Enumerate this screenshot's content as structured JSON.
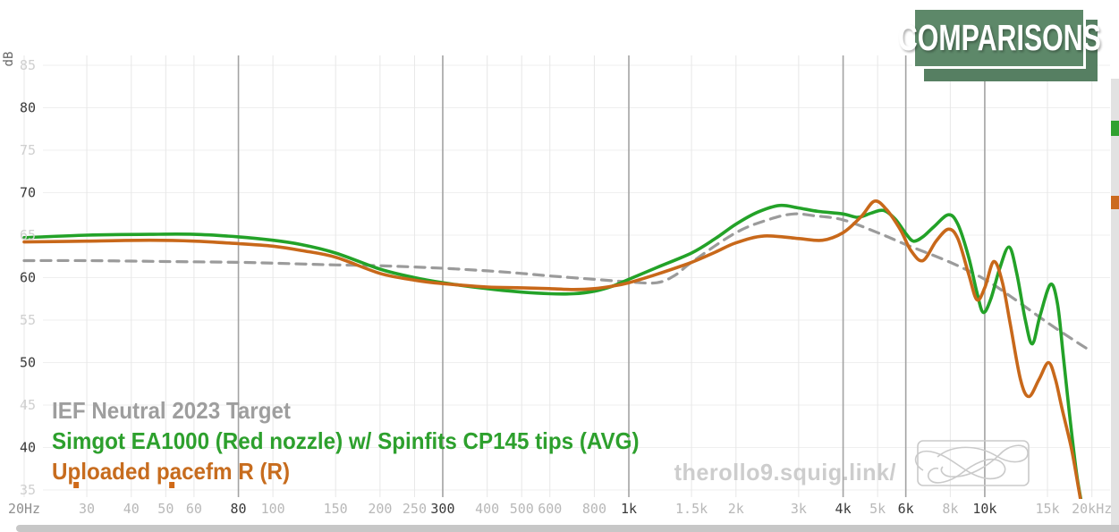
{
  "header": {
    "comparisons_button": "COMPARISONS",
    "button_color": "#5d8869",
    "button_shadow_color": "#567f62"
  },
  "watermark": "therollo9.squig.link/",
  "axis": {
    "y_title": "dB",
    "y_ticks": [
      {
        "label": "85",
        "value": 85,
        "emphasis": false
      },
      {
        "label": "80",
        "value": 80,
        "emphasis": true
      },
      {
        "label": "75",
        "value": 75,
        "emphasis": false
      },
      {
        "label": "70",
        "value": 70,
        "emphasis": true
      },
      {
        "label": "65",
        "value": 65,
        "emphasis": false
      },
      {
        "label": "60",
        "value": 60,
        "emphasis": true
      },
      {
        "label": "55",
        "value": 55,
        "emphasis": false
      },
      {
        "label": "50",
        "value": 50,
        "emphasis": true
      },
      {
        "label": "45",
        "value": 45,
        "emphasis": false
      },
      {
        "label": "40",
        "value": 40,
        "emphasis": true
      },
      {
        "label": "35",
        "value": 35,
        "emphasis": false
      }
    ],
    "x_ticks": [
      {
        "label": "20Hz",
        "freq": 20,
        "shade": "mid"
      },
      {
        "label": "30",
        "freq": 30,
        "shade": "light"
      },
      {
        "label": "40",
        "freq": 40,
        "shade": "light"
      },
      {
        "label": "50",
        "freq": 50,
        "shade": "light"
      },
      {
        "label": "60",
        "freq": 60,
        "shade": "light"
      },
      {
        "label": "80",
        "freq": 80,
        "shade": "dark"
      },
      {
        "label": "100",
        "freq": 100,
        "shade": "light"
      },
      {
        "label": "150",
        "freq": 150,
        "shade": "light"
      },
      {
        "label": "200",
        "freq": 200,
        "shade": "light"
      },
      {
        "label": "250",
        "freq": 250,
        "shade": "light"
      },
      {
        "label": "300",
        "freq": 300,
        "shade": "dark"
      },
      {
        "label": "400",
        "freq": 400,
        "shade": "light"
      },
      {
        "label": "500",
        "freq": 500,
        "shade": "light"
      },
      {
        "label": "600",
        "freq": 600,
        "shade": "light"
      },
      {
        "label": "800",
        "freq": 800,
        "shade": "light"
      },
      {
        "label": "1k",
        "freq": 1000,
        "shade": "dark"
      },
      {
        "label": "1.5k",
        "freq": 1500,
        "shade": "light"
      },
      {
        "label": "2k",
        "freq": 2000,
        "shade": "light"
      },
      {
        "label": "3k",
        "freq": 3000,
        "shade": "light"
      },
      {
        "label": "4k",
        "freq": 4000,
        "shade": "dark"
      },
      {
        "label": "5k",
        "freq": 5000,
        "shade": "light"
      },
      {
        "label": "6k",
        "freq": 6000,
        "shade": "dark"
      },
      {
        "label": "8k",
        "freq": 8000,
        "shade": "light"
      },
      {
        "label": "10k",
        "freq": 10000,
        "shade": "dark"
      },
      {
        "label": "15k",
        "freq": 15000,
        "shade": "light"
      },
      {
        "label": "20kHz",
        "freq": 20000,
        "shade": "light"
      }
    ]
  },
  "legend": [
    {
      "label": "IEF Neutral 2023 Target",
      "color": "#9e9e9e"
    },
    {
      "label": "Simgot EA1000 (Red nozzle) w/ Spinfits CP145 tips (AVG)",
      "color": "#2da02d"
    },
    {
      "label": "Uploaded pacefm R (R)",
      "color": "#c76c1e"
    }
  ],
  "chart_data": {
    "type": "line",
    "title": "",
    "ylabel": "dB",
    "x_scale": "log",
    "x_range": [
      20,
      20000
    ],
    "y_range": [
      35,
      85
    ],
    "y_tick_step": 5,
    "grid": true,
    "legend_position": "bottom-left",
    "series": [
      {
        "name": "IEF Neutral 2023 Target",
        "slug": "target-curve",
        "color": "#9b9b9b",
        "style": "dashed",
        "points": [
          [
            20,
            62
          ],
          [
            30,
            62
          ],
          [
            50,
            61.9
          ],
          [
            80,
            61.8
          ],
          [
            100,
            61.7
          ],
          [
            150,
            61.5
          ],
          [
            200,
            61.4
          ],
          [
            300,
            61.1
          ],
          [
            400,
            60.8
          ],
          [
            500,
            60.5
          ],
          [
            600,
            60.2
          ],
          [
            800,
            59.8
          ],
          [
            1000,
            59.5
          ],
          [
            1200,
            59.4
          ],
          [
            1350,
            60.3
          ],
          [
            1500,
            61.8
          ],
          [
            2000,
            65.3
          ],
          [
            2500,
            66.9
          ],
          [
            2900,
            67.5
          ],
          [
            3300,
            67.3
          ],
          [
            4000,
            66.8
          ],
          [
            5000,
            65.3
          ],
          [
            6000,
            63.9
          ],
          [
            8000,
            61.8
          ],
          [
            10000,
            59.8
          ],
          [
            12000,
            57.6
          ],
          [
            15000,
            54.7
          ],
          [
            18000,
            52.5
          ],
          [
            19800,
            51.4
          ]
        ]
      },
      {
        "name": "Simgot EA1000 (Red nozzle) w/ Spinfits CP145 tips (AVG)",
        "slug": "ea1000-curve",
        "color": "#23a228",
        "style": "solid",
        "points": [
          [
            20,
            64.7
          ],
          [
            30,
            65
          ],
          [
            45,
            65.1
          ],
          [
            60,
            65.1
          ],
          [
            80,
            64.8
          ],
          [
            100,
            64.4
          ],
          [
            120,
            63.9
          ],
          [
            150,
            62.9
          ],
          [
            200,
            61
          ],
          [
            250,
            60
          ],
          [
            300,
            59.4
          ],
          [
            400,
            58.7
          ],
          [
            500,
            58.3
          ],
          [
            600,
            58.1
          ],
          [
            700,
            58.1
          ],
          [
            800,
            58.4
          ],
          [
            900,
            59
          ],
          [
            1000,
            59.8
          ],
          [
            1200,
            61.2
          ],
          [
            1500,
            62.9
          ],
          [
            1750,
            64.6
          ],
          [
            2000,
            66.3
          ],
          [
            2300,
            67.7
          ],
          [
            2650,
            68.5
          ],
          [
            3000,
            68.2
          ],
          [
            3400,
            67.8
          ],
          [
            4000,
            67.5
          ],
          [
            4400,
            67.1
          ],
          [
            4800,
            67.6
          ],
          [
            5200,
            67.9
          ],
          [
            5600,
            66.9
          ],
          [
            6000,
            65.2
          ],
          [
            6300,
            64.3
          ],
          [
            6700,
            64.8
          ],
          [
            7200,
            66
          ],
          [
            7900,
            67.4
          ],
          [
            8400,
            66.3
          ],
          [
            9000,
            62.5
          ],
          [
            9500,
            58.3
          ],
          [
            9900,
            55.9
          ],
          [
            10400,
            57.5
          ],
          [
            11000,
            61
          ],
          [
            11700,
            63.6
          ],
          [
            12300,
            60.5
          ],
          [
            13000,
            55
          ],
          [
            13600,
            52.2
          ],
          [
            14300,
            55.5
          ],
          [
            15300,
            59.2
          ],
          [
            16000,
            57
          ],
          [
            16600,
            51
          ],
          [
            17300,
            44
          ],
          [
            18100,
            37
          ],
          [
            18800,
            33
          ]
        ]
      },
      {
        "name": "Uploaded pacefm R (R)",
        "slug": "pacefm-curve",
        "color": "#c8681a",
        "style": "solid",
        "points": [
          [
            20,
            64.2
          ],
          [
            30,
            64.3
          ],
          [
            45,
            64.4
          ],
          [
            60,
            64.3
          ],
          [
            80,
            64
          ],
          [
            100,
            63.7
          ],
          [
            120,
            63.2
          ],
          [
            150,
            62.4
          ],
          [
            200,
            60.5
          ],
          [
            250,
            59.7
          ],
          [
            300,
            59.3
          ],
          [
            400,
            58.9
          ],
          [
            500,
            58.8
          ],
          [
            600,
            58.7
          ],
          [
            700,
            58.6
          ],
          [
            800,
            58.7
          ],
          [
            900,
            59
          ],
          [
            1000,
            59.4
          ],
          [
            1200,
            60.4
          ],
          [
            1500,
            61.8
          ],
          [
            1750,
            63
          ],
          [
            2000,
            64.1
          ],
          [
            2400,
            64.9
          ],
          [
            3000,
            64.6
          ],
          [
            3500,
            64.4
          ],
          [
            4000,
            65.3
          ],
          [
            4500,
            67.2
          ],
          [
            4900,
            69
          ],
          [
            5300,
            68
          ],
          [
            5800,
            65.6
          ],
          [
            6200,
            63.2
          ],
          [
            6700,
            62
          ],
          [
            7300,
            64.3
          ],
          [
            7900,
            65.7
          ],
          [
            8400,
            64.6
          ],
          [
            9000,
            60.5
          ],
          [
            9500,
            57.4
          ],
          [
            10000,
            58.8
          ],
          [
            10600,
            61.9
          ],
          [
            11200,
            59.5
          ],
          [
            11800,
            54.5
          ],
          [
            12600,
            48
          ],
          [
            13300,
            46
          ],
          [
            14200,
            48
          ],
          [
            15100,
            50
          ],
          [
            15800,
            48
          ],
          [
            16500,
            44.5
          ],
          [
            17500,
            40
          ],
          [
            18300,
            35.5
          ],
          [
            18900,
            32
          ]
        ]
      }
    ]
  },
  "decor": {
    "right_strip_markers": [
      {
        "name": "green-marker",
        "color": "#2fa12f"
      },
      {
        "name": "orange-marker",
        "color": "#cc6a1f"
      }
    ],
    "bottom_axis_markers": [
      {
        "freq": 28,
        "color": "#d06a18"
      },
      {
        "freq": 52,
        "color": "#d06a18"
      }
    ]
  }
}
